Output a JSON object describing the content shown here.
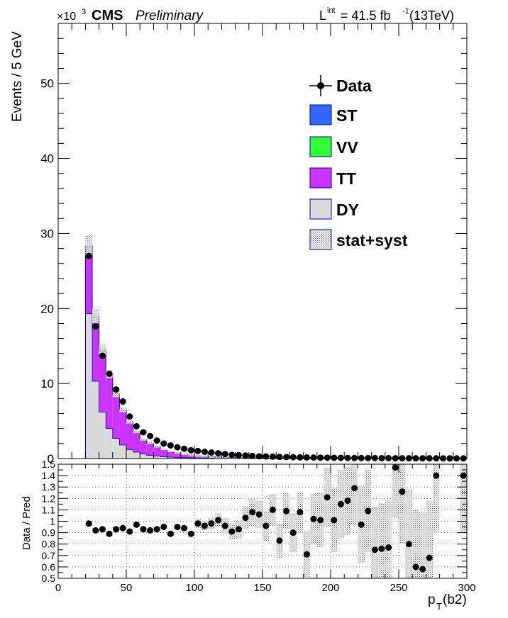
{
  "header": {
    "exponent_prefix": "×10",
    "exponent_power": "3",
    "experiment": "CMS",
    "status": "Preliminary",
    "lumi_prefix": "L",
    "lumi_superscript": "int",
    "lumi_value": " = 41.5 fb",
    "lumi_unit_power": "-1",
    "lumi_energy": " (13TeV)"
  },
  "colors": {
    "ST": "#3366ff",
    "VV": "#33ff33",
    "TT": "#cc33ff",
    "DY": "#d9d9d9",
    "outline": "#0000aa",
    "data": "#000000",
    "unc": "#777777"
  },
  "chart_data": [
    {
      "type": "bar",
      "stacked": true,
      "ylabel": "Events / 5 GeV",
      "yscale_note": "×10^3",
      "xlim": [
        0,
        300
      ],
      "ylim": [
        0,
        58
      ],
      "yticks": [
        "0",
        "10",
        "20",
        "30",
        "40",
        "50"
      ],
      "bin_width": 5,
      "bin_low_edges": [
        20,
        25,
        30,
        35,
        40,
        45,
        50,
        55,
        60,
        65,
        70,
        75,
        80,
        85,
        90,
        95,
        100,
        105,
        110,
        115,
        120,
        125,
        130,
        135,
        140,
        145,
        150,
        155,
        160,
        165,
        170,
        175,
        180,
        185,
        190,
        195,
        200,
        205,
        210,
        215,
        220,
        225,
        230,
        235,
        240,
        245,
        250,
        255,
        260,
        265,
        270,
        275,
        280,
        285,
        290,
        295
      ],
      "legend": [
        "Data",
        "ST",
        "VV",
        "TT",
        "DY",
        "stat+syst"
      ],
      "legend_position": "top-right",
      "series": [
        {
          "name": "DY",
          "values": [
            19.3,
            10.3,
            6.2,
            4.0,
            2.7,
            1.8,
            1.2,
            0.85,
            0.6,
            0.43,
            0.32,
            0.24,
            0.18,
            0.14,
            0.11,
            0.09,
            0.07,
            0.06,
            0.05,
            0.04,
            0.035,
            0.03,
            0.025,
            0.02,
            0.018,
            0.015,
            0.013,
            0.011,
            0.01,
            0.009,
            0.008,
            0.007,
            0.006,
            0.005,
            0.005,
            0.004,
            0.004,
            0.003,
            0.003,
            0.003,
            0.003,
            0.002,
            0.002,
            0.002,
            0.002,
            0.002,
            0.002,
            0.001,
            0.001,
            0.001,
            0.001,
            0.001,
            0.001,
            0.001,
            0.001,
            0.001
          ]
        },
        {
          "name": "TT",
          "values": [
            8.5,
            8.2,
            7.8,
            6.9,
            5.6,
            4.45,
            3.5,
            2.55,
            1.8,
            1.52,
            1.18,
            0.9,
            0.72,
            0.56,
            0.44,
            0.34,
            0.27,
            0.21,
            0.17,
            0.13,
            0.11,
            0.085,
            0.07,
            0.055,
            0.045,
            0.036,
            0.03,
            0.025,
            0.02,
            0.017,
            0.014,
            0.012,
            0.01,
            0.008,
            0.007,
            0.006,
            0.005,
            0.004,
            0.004,
            0.003,
            0.003,
            0.002,
            0.002,
            0.002,
            0.002,
            0.001,
            0.001,
            0.001,
            0.001,
            0.001,
            0.001,
            0.001,
            0.001,
            0.001,
            0.001,
            0.001
          ]
        },
        {
          "name": "VV",
          "values": [
            0.15,
            0.12,
            0.1,
            0.08,
            0.06,
            0.05,
            0.04,
            0.03,
            0.02,
            0.02,
            0.015,
            0.01,
            0.01,
            0.008,
            0.006,
            0.005,
            0.004,
            0.003,
            0.003,
            0.002,
            0.002,
            0.002,
            0.001,
            0.001,
            0.001,
            0.001,
            0.001,
            0.001,
            0.001,
            0.001,
            0.001,
            0.001,
            0.001,
            0.0,
            0.0,
            0.0,
            0.0,
            0.0,
            0.0,
            0.0,
            0.0,
            0.0,
            0.0,
            0.0,
            0.0,
            0.0,
            0.0,
            0.0,
            0.0,
            0.0,
            0.0,
            0.0,
            0.0,
            0.0,
            0.0,
            0.0
          ]
        },
        {
          "name": "ST",
          "values": [
            0.4,
            0.38,
            0.35,
            0.3,
            0.25,
            0.2,
            0.16,
            0.12,
            0.09,
            0.07,
            0.05,
            0.04,
            0.03,
            0.025,
            0.02,
            0.016,
            0.013,
            0.01,
            0.008,
            0.006,
            0.005,
            0.004,
            0.003,
            0.003,
            0.002,
            0.002,
            0.002,
            0.001,
            0.001,
            0.001,
            0.001,
            0.001,
            0.001,
            0.001,
            0.0,
            0.0,
            0.0,
            0.0,
            0.0,
            0.0,
            0.0,
            0.0,
            0.0,
            0.0,
            0.0,
            0.0,
            0.0,
            0.0,
            0.0,
            0.0,
            0.0,
            0.0,
            0.0,
            0.0,
            0.0,
            0.0
          ]
        },
        {
          "name": "Data",
          "values": [
            27.0,
            17.6,
            13.7,
            11.3,
            9.2,
            7.6,
            5.6,
            4.3,
            3.5,
            3.0,
            2.4,
            2.0,
            1.75,
            1.5,
            1.3,
            1.1,
            1.0,
            0.9,
            0.8,
            0.7,
            0.6,
            0.5,
            0.45,
            0.4,
            0.35,
            0.3,
            0.28,
            0.25,
            0.22,
            0.2,
            0.18,
            0.16,
            0.15,
            0.13,
            0.12,
            0.11,
            0.1,
            0.09,
            0.08,
            0.07,
            0.07,
            0.06,
            0.06,
            0.05,
            0.05,
            0.04,
            0.04,
            0.04,
            0.03,
            0.03,
            0.03,
            0.03,
            0.02,
            0.02,
            0.02,
            0.02
          ]
        }
      ],
      "uncertainty_fraction": 0.05
    },
    {
      "type": "scatter",
      "ylabel": "Data / Pred",
      "xlabel_main": "p",
      "xlabel_sub": "T",
      "xlabel_tail": "(b2)",
      "xlim": [
        0,
        300
      ],
      "ylim": [
        0.5,
        1.5
      ],
      "xticks": [
        "0",
        "50",
        "100",
        "150",
        "200",
        "250",
        "300"
      ],
      "yticks": [
        "0.5",
        "0.6",
        "0.7",
        "0.8",
        "0.9",
        "1",
        "1.1",
        "1.2",
        "1.3",
        "1.4",
        "1.5"
      ],
      "grid": true,
      "x": [
        22.5,
        27.5,
        32.5,
        37.5,
        42.5,
        47.5,
        52.5,
        57.5,
        62.5,
        67.5,
        72.5,
        77.5,
        82.5,
        87.5,
        92.5,
        97.5,
        102.5,
        107.5,
        112.5,
        117.5,
        122.5,
        127.5,
        132.5,
        137.5,
        142.5,
        147.5,
        152.5,
        157.5,
        162.5,
        167.5,
        172.5,
        177.5,
        182.5,
        187.5,
        192.5,
        197.5,
        202.5,
        207.5,
        212.5,
        217.5,
        222.5,
        227.5,
        232.5,
        237.5,
        242.5,
        247.5,
        252.5,
        257.5,
        262.5,
        267.5,
        272.5,
        277.5,
        297.5
      ],
      "ratio": [
        0.98,
        0.92,
        0.93,
        0.89,
        0.93,
        0.94,
        0.91,
        0.97,
        0.93,
        0.92,
        0.93,
        0.95,
        0.89,
        0.95,
        0.94,
        0.89,
        0.98,
        0.96,
        0.98,
        1.01,
        0.96,
        0.91,
        0.93,
        1.03,
        1.08,
        1.06,
        0.96,
        1.1,
        0.83,
        1.09,
        0.9,
        1.08,
        0.71,
        1.02,
        1.01,
        1.21,
        1.01,
        1.15,
        1.18,
        1.29,
        0.97,
        1.09,
        0.75,
        0.76,
        0.77,
        1.47,
        1.26,
        0.8,
        0.6,
        0.58,
        0.68,
        1.4,
        1.4
      ],
      "ratio_unc": [
        0.02,
        0.02,
        0.02,
        0.02,
        0.02,
        0.02,
        0.02,
        0.02,
        0.02,
        0.02,
        0.02,
        0.02,
        0.02,
        0.02,
        0.02,
        0.02,
        0.04,
        0.04,
        0.05,
        0.06,
        0.07,
        0.07,
        0.08,
        0.1,
        0.12,
        0.12,
        0.13,
        0.14,
        0.15,
        0.16,
        0.17,
        0.18,
        0.2,
        0.22,
        0.24,
        0.26,
        0.28,
        0.3,
        0.3,
        0.32,
        0.34,
        0.36,
        0.38,
        0.4,
        0.42,
        0.44,
        0.46,
        0.48,
        0.5,
        0.5,
        0.5,
        0.5,
        0.5
      ]
    }
  ]
}
